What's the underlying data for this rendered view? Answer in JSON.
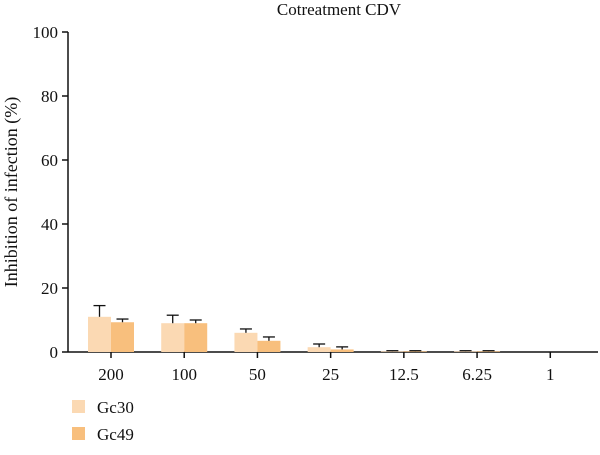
{
  "chart_data": {
    "type": "bar",
    "title": "Cotreatment CDV",
    "xlabel": "",
    "ylabel": "Inhibition of infection (%)",
    "ylim": [
      0,
      100
    ],
    "yticks": [
      0,
      20,
      40,
      60,
      80,
      100
    ],
    "categories": [
      "200",
      "100",
      "50",
      "25",
      "12.5",
      "6.25",
      "1"
    ],
    "series": [
      {
        "name": "Gc30",
        "color": "#fbd9b3",
        "values": [
          11,
          9,
          6,
          1.5,
          0.2,
          0.2,
          0
        ],
        "errors": [
          3.5,
          2.5,
          1.2,
          1.0,
          0.2,
          0.2,
          0
        ]
      },
      {
        "name": "Gc49",
        "color": "#f8bf7d",
        "values": [
          9.3,
          9,
          3.5,
          0.8,
          0.2,
          0.2,
          0
        ],
        "errors": [
          1.0,
          1.0,
          1.2,
          0.8,
          0.2,
          0.2,
          0
        ]
      }
    ],
    "grid": false,
    "legend_position": "bottom-left"
  }
}
